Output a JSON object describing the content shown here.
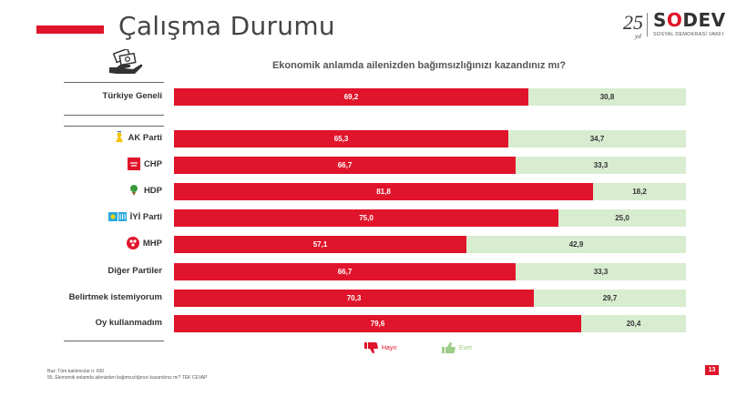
{
  "header": {
    "title": "Çalışma Durumu",
    "logo_number": "25",
    "logo_year_text": "yıl",
    "logo_brand_pre": "S",
    "logo_brand_o": "O",
    "logo_brand_post": "DEV",
    "logo_subtitle": "SOSYAL DEMOKRASİ VAKFI"
  },
  "colors": {
    "hayir": "#e0142a",
    "evet": "#d8ecd0",
    "accent": "#e0142a"
  },
  "icons": [
    "money-hand-icon",
    "ak-parti-logo-icon",
    "chp-logo-icon",
    "hdp-logo-icon",
    "iyi-parti-logo-icon",
    "mhp-logo-icon",
    "thumbs-down-icon",
    "thumbs-up-icon"
  ],
  "chart_data": {
    "type": "bar",
    "stacked": true,
    "orientation": "horizontal",
    "title": "Ekonomik anlamda ailenizden bağımsızlığınızı kazandınız mı?",
    "categories": [
      "Türkiye Geneli",
      "AK Parti",
      "CHP",
      "HDP",
      "İYİ Parti",
      "MHP",
      "Diğer Partiler",
      "Belirtmek istemiyorum",
      "Oy kullanmadım"
    ],
    "series": [
      {
        "name": "Hayır",
        "values": [
          69.2,
          65.3,
          66.7,
          81.8,
          75.0,
          57.1,
          66.7,
          70.3,
          79.6
        ],
        "labels": [
          "69,2",
          "65,3",
          "66,7",
          "81,8",
          "75,0",
          "57,1",
          "66,7",
          "70,3",
          "79,6"
        ]
      },
      {
        "name": "Evet",
        "values": [
          30.8,
          34.7,
          33.3,
          18.2,
          25.0,
          42.9,
          33.3,
          29.7,
          20.4
        ],
        "labels": [
          "30,8",
          "34,7",
          "33,3",
          "18,2",
          "25,0",
          "42,9",
          "33,3",
          "29,7",
          "20,4"
        ]
      }
    ],
    "xlim": [
      0,
      100
    ],
    "legend": "bottom-center"
  },
  "footnotes": {
    "line1": "Baz: Tüm katılımcılar  n: 600",
    "line2": "55. Ekonomik anlamda ailenizden bağımsızlığınızı kazandınız mı? TEK CEVAP"
  },
  "page_number": "13"
}
